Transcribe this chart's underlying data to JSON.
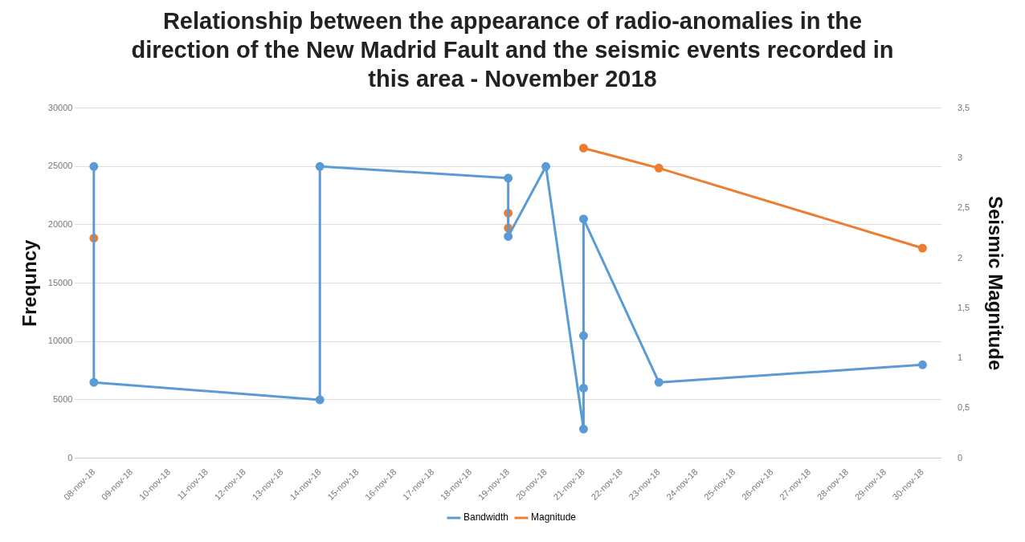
{
  "chart_data": {
    "type": "line",
    "title": "Relationship between the appearance of radio-anomalies in the direction of the New Madrid Fault and the seismic events recorded in this area - November 2018",
    "ylabel": "Frequncy",
    "y2label": "Seismic Magnitude",
    "series": [
      {
        "name": "Bandwidth",
        "color": "#5b9bd5",
        "x": [
          "2018-11-08",
          "2018-11-08",
          "2018-11-14",
          "2018-11-14",
          "2018-11-19",
          "2018-11-19",
          "2018-11-20",
          "2018-11-21",
          "2018-11-21",
          "2018-11-21",
          "2018-11-21",
          "2018-11-23",
          "2018-11-30"
        ],
        "values": [
          25000,
          6500,
          5000,
          25000,
          24000,
          19000,
          25000,
          2500,
          6000,
          10500,
          20500,
          6500,
          8000
        ]
      },
      {
        "name": "Magnitude",
        "color": "#ed7d31",
        "axis": "y2",
        "x": [
          "2018-11-08",
          "2018-11-14",
          "2018-11-19",
          "2018-11-19",
          "2018-11-20",
          "2018-11-21",
          "2018-11-23",
          "2018-11-30"
        ],
        "values": [
          2.2,
          null,
          2.45,
          2.3,
          null,
          3.1,
          2.9,
          2.1
        ]
      }
    ],
    "xlim": [
      "2018-11-07T12:00",
      "2018-11-30T12:00"
    ],
    "xticks": [
      {
        "value": "2018-11-08",
        "label": "08-nov-18"
      },
      {
        "value": "2018-11-09",
        "label": "09-nov-18"
      },
      {
        "value": "2018-11-10",
        "label": "10-nov-18"
      },
      {
        "value": "2018-11-11",
        "label": "11-nov-18"
      },
      {
        "value": "2018-11-12",
        "label": "12-nov-18"
      },
      {
        "value": "2018-11-13",
        "label": "13-nov-18"
      },
      {
        "value": "2018-11-14",
        "label": "14-nov-18"
      },
      {
        "value": "2018-11-15",
        "label": "15-nov-18"
      },
      {
        "value": "2018-11-16",
        "label": "16-nov-18"
      },
      {
        "value": "2018-11-17",
        "label": "17-nov-18"
      },
      {
        "value": "2018-11-18",
        "label": "18-nov-18"
      },
      {
        "value": "2018-11-19",
        "label": "19-nov-18"
      },
      {
        "value": "2018-11-20",
        "label": "20-nov-18"
      },
      {
        "value": "2018-11-21",
        "label": "21-nov-18"
      },
      {
        "value": "2018-11-22",
        "label": "22-nov-18"
      },
      {
        "value": "2018-11-23",
        "label": "23-nov-18"
      },
      {
        "value": "2018-11-24",
        "label": "24-nov-18"
      },
      {
        "value": "2018-11-25",
        "label": "25-nov-18"
      },
      {
        "value": "2018-11-26",
        "label": "26-nov-18"
      },
      {
        "value": "2018-11-27",
        "label": "27-nov-18"
      },
      {
        "value": "2018-11-28",
        "label": "28-nov-18"
      },
      {
        "value": "2018-11-29",
        "label": "29-nov-18"
      },
      {
        "value": "2018-11-30",
        "label": "30-nov-18"
      }
    ],
    "ylim": [
      0,
      30000
    ],
    "yticks": [
      0,
      5000,
      10000,
      15000,
      20000,
      25000,
      30000
    ],
    "y2lim": [
      0,
      3.5
    ],
    "y2ticks": [
      0,
      {
        "value": 0.5,
        "label": "0,5"
      },
      1,
      {
        "value": 1.5,
        "label": "1,5"
      },
      2,
      {
        "value": 2.5,
        "label": "2,5"
      },
      3,
      {
        "value": 3.5,
        "label": "3,5"
      }
    ],
    "grid": "y",
    "legend": "bottom",
    "marker": "circle",
    "line_style": "solid"
  }
}
